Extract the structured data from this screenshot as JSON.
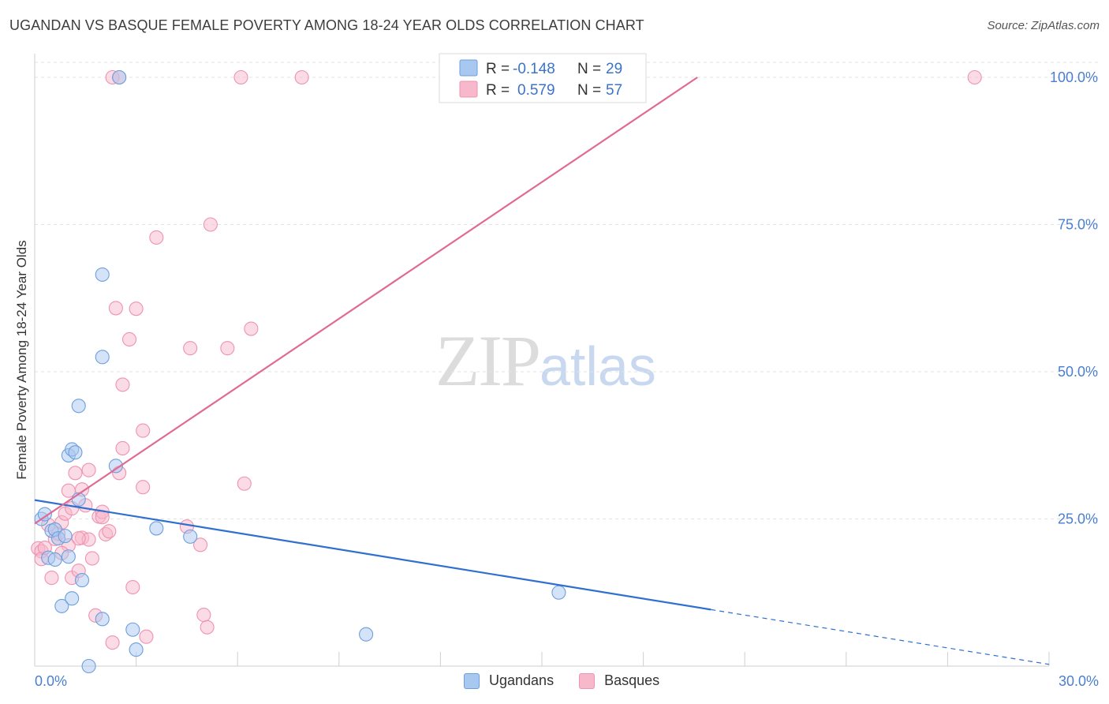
{
  "header": {
    "title": "UGANDAN VS BASQUE FEMALE POVERTY AMONG 18-24 YEAR OLDS CORRELATION CHART",
    "source": "Source: ZipAtlas.com"
  },
  "watermark": {
    "zip": "ZIP",
    "atlas": "atlas"
  },
  "legend_box": {
    "rows": [
      {
        "r_label": "R =",
        "r_value": "-0.148",
        "n_label": "N =",
        "n_value": "29"
      },
      {
        "r_label": "R =",
        "r_value": "0.579",
        "n_label": "N =",
        "n_value": "57"
      }
    ]
  },
  "bottom_legend": [
    {
      "label": "Ugandans"
    },
    {
      "label": "Basques"
    }
  ],
  "colors": {
    "ugandans_fill": "#a9c8f0",
    "ugandans_stroke": "#6b9fde",
    "ugandans_line": "#2f6fcf",
    "basques_fill": "#f7b8cc",
    "basques_stroke": "#ee93b0",
    "basques_line": "#e06a93",
    "tick_text": "#4a7fd0",
    "grid": "#e3e3e3"
  },
  "chart_data": {
    "type": "scatter",
    "title": "UGANDAN VS BASQUE FEMALE POVERTY AMONG 18-24 YEAR OLDS CORRELATION CHART",
    "xlabel": "",
    "ylabel": "Female Poverty Among 18-24 Year Olds",
    "xlim": [
      0,
      30
    ],
    "ylim": [
      0,
      102
    ],
    "x_tick_labels": [
      "0.0%",
      "30.0%"
    ],
    "y_ticks": [
      25,
      50,
      75,
      100
    ],
    "y_tick_labels": [
      "25.0%",
      "50.0%",
      "75.0%",
      "100.0%"
    ],
    "grid": true,
    "legend_position": "top-center",
    "series": [
      {
        "name": "Ugandans",
        "r": -0.148,
        "n": 29,
        "trend": {
          "x0": 0,
          "y0": 28.2,
          "x1": 20,
          "y1": 9.6,
          "dashed_to_x": 30,
          "dashed_to_y": 0.3
        },
        "points": [
          [
            0.2,
            25.0
          ],
          [
            0.3,
            25.8
          ],
          [
            0.4,
            18.4
          ],
          [
            0.5,
            23.0
          ],
          [
            0.6,
            23.2
          ],
          [
            0.6,
            18.1
          ],
          [
            0.7,
            21.7
          ],
          [
            0.8,
            10.2
          ],
          [
            1.0,
            18.6
          ],
          [
            1.0,
            35.8
          ],
          [
            1.1,
            11.5
          ],
          [
            1.1,
            36.8
          ],
          [
            1.2,
            36.3
          ],
          [
            1.3,
            28.3
          ],
          [
            1.3,
            44.2
          ],
          [
            1.4,
            14.6
          ],
          [
            2.0,
            66.5
          ],
          [
            2.0,
            8.0
          ],
          [
            2.0,
            52.5
          ],
          [
            2.5,
            100.0
          ],
          [
            2.4,
            34.0
          ],
          [
            2.9,
            6.2
          ],
          [
            3.0,
            2.8
          ],
          [
            3.6,
            23.4
          ],
          [
            4.6,
            22.0
          ],
          [
            9.8,
            5.4
          ],
          [
            1.6,
            0.0
          ],
          [
            15.5,
            12.5
          ],
          [
            0.9,
            22.1
          ]
        ]
      },
      {
        "name": "Basques",
        "r": 0.579,
        "n": 57,
        "trend": {
          "x0": 0,
          "y0": 24.2,
          "x1": 19.6,
          "y1": 100.0
        },
        "points": [
          [
            0.1,
            20.0
          ],
          [
            0.2,
            19.5
          ],
          [
            0.2,
            18.2
          ],
          [
            0.3,
            20.1
          ],
          [
            0.4,
            24.0
          ],
          [
            0.5,
            15.0
          ],
          [
            0.6,
            21.6
          ],
          [
            0.7,
            22.5
          ],
          [
            0.8,
            24.4
          ],
          [
            0.9,
            25.9
          ],
          [
            1.0,
            29.8
          ],
          [
            1.0,
            20.5
          ],
          [
            1.1,
            15.0
          ],
          [
            1.1,
            26.8
          ],
          [
            1.2,
            32.8
          ],
          [
            1.3,
            16.2
          ],
          [
            1.4,
            21.8
          ],
          [
            1.4,
            30.0
          ],
          [
            1.5,
            27.3
          ],
          [
            1.6,
            33.3
          ],
          [
            1.6,
            21.5
          ],
          [
            1.7,
            18.3
          ],
          [
            1.8,
            8.6
          ],
          [
            1.9,
            25.4
          ],
          [
            2.0,
            26.2
          ],
          [
            2.0,
            25.3
          ],
          [
            2.1,
            22.4
          ],
          [
            2.2,
            22.9
          ],
          [
            2.3,
            4.0
          ],
          [
            2.3,
            100.0
          ],
          [
            2.4,
            60.8
          ],
          [
            2.5,
            100.0
          ],
          [
            2.5,
            32.8
          ],
          [
            2.6,
            37.0
          ],
          [
            2.6,
            47.8
          ],
          [
            2.8,
            55.5
          ],
          [
            2.9,
            13.4
          ],
          [
            3.0,
            60.7
          ],
          [
            3.2,
            40.0
          ],
          [
            3.2,
            30.4
          ],
          [
            3.3,
            5.0
          ],
          [
            3.6,
            72.8
          ],
          [
            4.5,
            23.7
          ],
          [
            4.6,
            54.0
          ],
          [
            4.9,
            20.6
          ],
          [
            5.0,
            8.7
          ],
          [
            5.1,
            6.6
          ],
          [
            5.2,
            75.0
          ],
          [
            5.7,
            54.0
          ],
          [
            6.1,
            100.0
          ],
          [
            6.2,
            31.0
          ],
          [
            6.4,
            57.3
          ],
          [
            7.9,
            100.0
          ],
          [
            14.3,
            100.0
          ],
          [
            27.8,
            100.0
          ],
          [
            1.3,
            21.7
          ],
          [
            0.8,
            19.2
          ]
        ]
      }
    ]
  }
}
